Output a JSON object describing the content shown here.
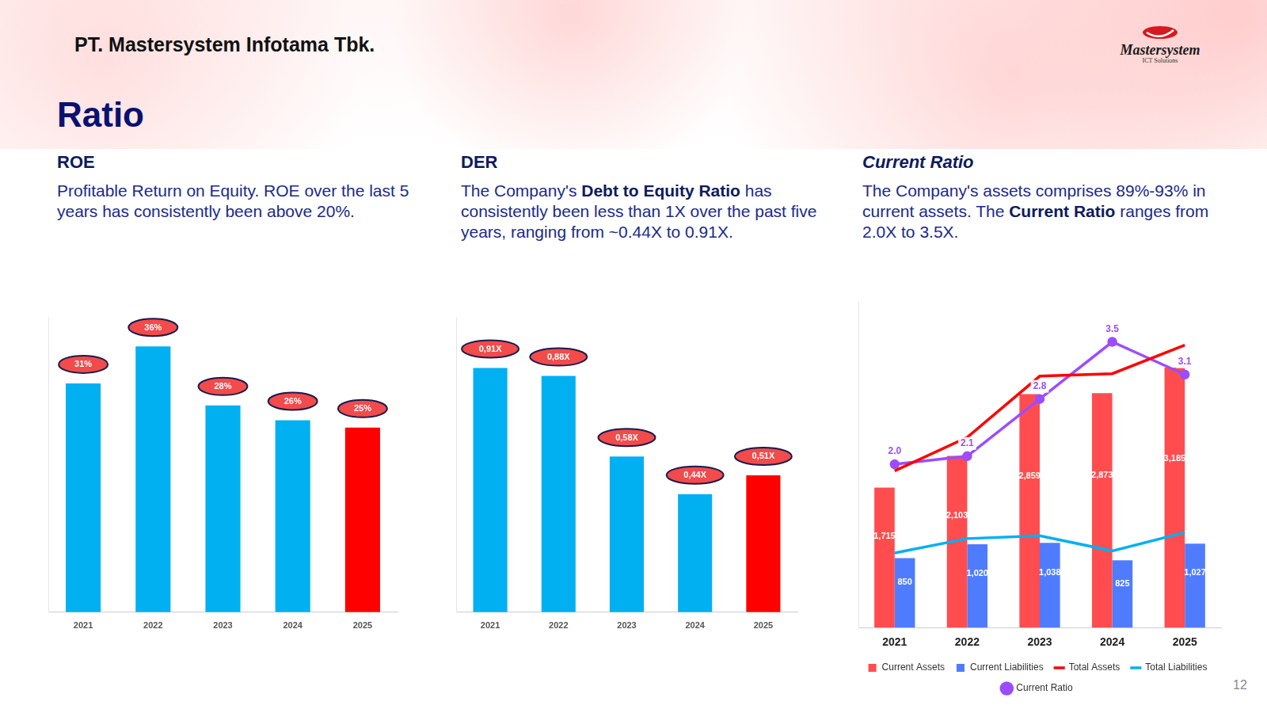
{
  "header": {
    "company": "PT. Mastersystem Infotama Tbk.",
    "logo": {
      "name": "Mastersystem",
      "tagline": "ICT Solutions"
    }
  },
  "title": "Ratio",
  "page_number": 12,
  "panels": [
    {
      "heading": "ROE",
      "text": [
        {
          "text": "Profitable Return on Equity. ROE over the last 5 years has consistently been above 20%.",
          "bold": false
        }
      ]
    },
    {
      "heading": "DER",
      "text": [
        {
          "text": "The Company's ",
          "bold": false
        },
        {
          "text": "Debt to Equity Ratio",
          "bold": true
        },
        {
          "text": " has consistently been less than 1X over the past five years, ranging from ~0.44X to 0.91X.",
          "bold": false
        }
      ]
    },
    {
      "heading": "Current Ratio",
      "text": [
        {
          "text": "The Company's assets comprises 89%-93% in current assets. The ",
          "bold": false
        },
        {
          "text": "Current Ratio",
          "bold": true
        },
        {
          "text": " ranges from 2.0X to 3.5X.",
          "bold": false
        }
      ]
    }
  ],
  "chart_data": [
    {
      "type": "bar",
      "categories": [
        "2021",
        "2022",
        "2023",
        "2024",
        "2025"
      ],
      "values": [
        31,
        36,
        28,
        26,
        25
      ],
      "value_labels": [
        "31%",
        "36%",
        "28%",
        "26%",
        "25%"
      ],
      "colors": [
        "#00b0f0",
        "#00b0f0",
        "#00b0f0",
        "#00b0f0",
        "#ff0000"
      ],
      "ylim": [
        0,
        40
      ],
      "grid": false,
      "data_labels": true,
      "tick_labels": "x"
    },
    {
      "type": "bar",
      "categories": [
        "2021",
        "2022",
        "2023",
        "2024",
        "2025"
      ],
      "values": [
        0.91,
        0.88,
        0.58,
        0.44,
        0.51
      ],
      "value_labels": [
        "0,91X",
        "0,88X",
        "0,58X",
        "0,44X",
        "0,51X"
      ],
      "colors": [
        "#00b0f0",
        "#00b0f0",
        "#00b0f0",
        "#00b0f0",
        "#ff0000"
      ],
      "ylim": [
        0,
        1.1
      ],
      "grid": false,
      "data_labels": true,
      "tick_labels": "x"
    },
    {
      "type": "bar",
      "categories": [
        "2021",
        "2022",
        "2023",
        "2024",
        "2025"
      ],
      "series": [
        {
          "name": "Current Assets",
          "type": "bar",
          "color": "#ff4d4f",
          "values": [
            1715,
            2103,
            2859,
            2873,
            3185
          ],
          "value_labels": [
            "1,715",
            "2,103",
            "2,859",
            "2,873",
            "3,185"
          ]
        },
        {
          "name": "Current Liabilities",
          "type": "bar",
          "color": "#4f7cff",
          "values": [
            850,
            1020,
            1038,
            825,
            1027
          ],
          "value_labels": [
            "850",
            "1,020",
            "1,038",
            "825",
            "1,027"
          ]
        },
        {
          "name": "Total Assets",
          "type": "line",
          "color": "#ff0000",
          "values": [
            1920,
            2330,
            3080,
            3110,
            3460
          ]
        },
        {
          "name": "Total Liabilities",
          "type": "line",
          "color": "#00b0f0",
          "values": [
            915,
            1090,
            1125,
            940,
            1165
          ]
        },
        {
          "name": "Current Ratio",
          "type": "line",
          "color": "#9b4dff",
          "axis": "y2",
          "marker": "circle",
          "values": [
            2.0,
            2.1,
            2.8,
            3.5,
            3.1
          ],
          "value_labels": [
            "2.0",
            "2.1",
            "2.8",
            "3.5",
            "3.1"
          ]
        }
      ],
      "ylim": [
        0,
        4000
      ],
      "y2lim": [
        0,
        4
      ],
      "grid": false,
      "data_labels": true,
      "tick_labels": "x",
      "legend": "bottom"
    }
  ]
}
